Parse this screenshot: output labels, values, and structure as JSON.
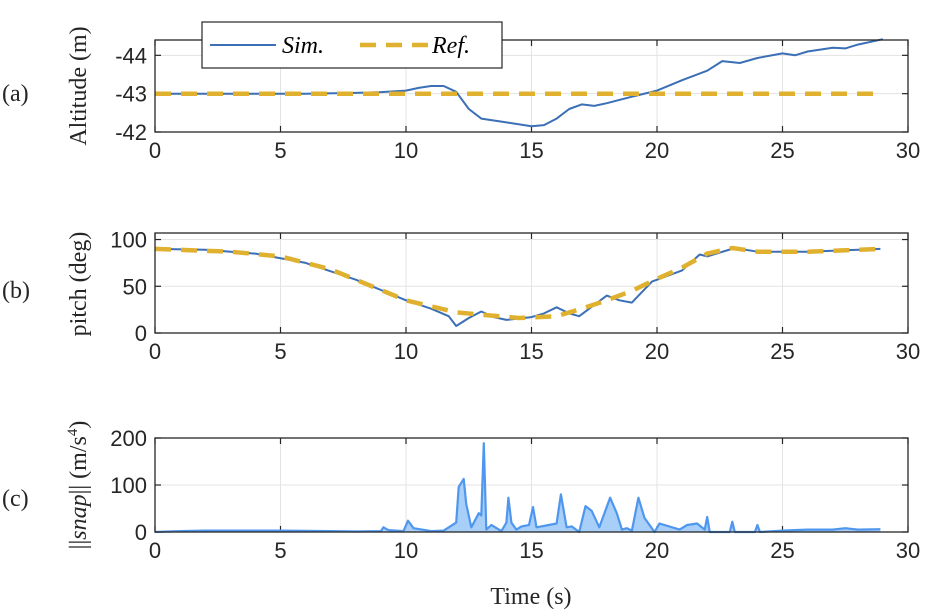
{
  "chart_data": [
    {
      "type": "line",
      "panel_label": "(a)",
      "ylabel": "Altitude (m)",
      "xlabel": "",
      "xlim": [
        0,
        30
      ],
      "ylim": [
        -44.4,
        -42
      ],
      "y_reversed": true,
      "xticks": [
        0,
        5,
        10,
        15,
        20,
        25,
        30
      ],
      "yticks": [
        -44,
        -43,
        -42
      ],
      "grid": true,
      "legend": {
        "placement": "top-left",
        "entries": [
          "Sim.",
          "Ref."
        ]
      },
      "series": [
        {
          "name": "Sim.",
          "color": "#3b6fb6",
          "style": "solid",
          "x": [
            0,
            2,
            4,
            6,
            8,
            9,
            10,
            10.5,
            11,
            11.5,
            12,
            12.5,
            13,
            14,
            15,
            15.5,
            16,
            16.5,
            17,
            17.5,
            18,
            19,
            20,
            21,
            22,
            22.6,
            23.3,
            24,
            25,
            25.5,
            26,
            27,
            27.5,
            28,
            29
          ],
          "y": [
            -43,
            -43,
            -43,
            -43,
            -43.02,
            -43.04,
            -43.08,
            -43.15,
            -43.2,
            -43.2,
            -43.05,
            -42.6,
            -42.35,
            -42.25,
            -42.15,
            -42.18,
            -42.35,
            -42.6,
            -42.72,
            -42.68,
            -42.75,
            -42.92,
            -43.08,
            -43.35,
            -43.6,
            -43.85,
            -43.8,
            -43.93,
            -44.05,
            -44.0,
            -44.1,
            -44.2,
            -44.18,
            -44.28,
            -44.42
          ]
        },
        {
          "name": "Ref.",
          "color": "#e0b12f",
          "style": "dashed",
          "x": [
            0,
            29
          ],
          "y": [
            -43,
            -43
          ]
        }
      ]
    },
    {
      "type": "line",
      "panel_label": "(b)",
      "ylabel": "pitch (deg)",
      "xlabel": "",
      "xlim": [
        0,
        30
      ],
      "ylim": [
        0,
        107
      ],
      "xticks": [
        0,
        5,
        10,
        15,
        20,
        25,
        30
      ],
      "yticks": [
        0,
        50,
        100
      ],
      "grid": true,
      "series": [
        {
          "name": "Sim.",
          "color": "#3b6fb6",
          "style": "solid",
          "x": [
            0,
            2,
            4,
            6,
            8,
            10,
            11,
            11.7,
            12,
            12.5,
            13,
            13.5,
            14,
            15,
            15.5,
            16,
            16.5,
            16.9,
            18,
            18.5,
            19,
            19.8,
            21,
            21.7,
            22,
            23.1,
            24,
            26,
            28.9
          ],
          "y": [
            90,
            89,
            85,
            75,
            57,
            35,
            26,
            18,
            7.5,
            16,
            23,
            17,
            14,
            17,
            21,
            27.5,
            21,
            18,
            40,
            35,
            32.5,
            55,
            67,
            84,
            82,
            91,
            87,
            87,
            90
          ]
        },
        {
          "name": "Ref.",
          "color": "#e0b12f",
          "style": "dashed",
          "x": [
            0,
            3,
            5,
            7,
            8,
            10,
            12,
            14.5,
            16,
            17,
            18,
            19,
            20,
            21,
            22,
            23,
            24,
            26,
            29
          ],
          "y": [
            90,
            87,
            82,
            68,
            57,
            35,
            22,
            16,
            18,
            26,
            35,
            45,
            58,
            70,
            85,
            91,
            87,
            87,
            90
          ]
        }
      ]
    },
    {
      "type": "area",
      "panel_label": "(c)",
      "ylabel": "||snap|| (m/s⁴)",
      "ylabel_parts": {
        "bars_open": "||",
        "var": "snap",
        "bars_close": "||",
        "unit": "(m/s",
        "sup": "4",
        "close": ")"
      },
      "xlabel": "Time (s)",
      "xlim": [
        0,
        30
      ],
      "ylim": [
        0,
        200
      ],
      "xticks": [
        0,
        5,
        10,
        15,
        20,
        25,
        30
      ],
      "yticks": [
        0,
        100,
        200
      ],
      "grid": true,
      "series": [
        {
          "name": "snap",
          "color": "#4f97ee",
          "fill": "#a8cff8",
          "x": [
            0,
            1,
            2,
            5,
            7,
            8,
            9,
            9.1,
            9.3,
            9.9,
            10.08,
            10.3,
            11,
            11.5,
            12.0,
            12.1,
            12.3,
            12.4,
            12.6,
            12.9,
            13.0,
            13.1,
            13.2,
            13.4,
            13.8,
            14.0,
            14.08,
            14.2,
            14.4,
            14.6,
            14.9,
            15.06,
            15.2,
            16.0,
            16.17,
            16.4,
            16.6,
            16.9,
            17.15,
            17.4,
            17.7,
            18.13,
            18.4,
            18.6,
            18.8,
            19.0,
            19.26,
            19.5,
            19.9,
            20.1,
            20.9,
            21.2,
            21.6,
            21.9,
            22.0,
            22.1,
            22.9,
            23.0,
            23.1,
            23.9,
            24.0,
            24.1,
            25,
            26,
            27,
            27.5,
            28,
            28.9
          ],
          "y": [
            0,
            2,
            3,
            3,
            2,
            1,
            2,
            10,
            4,
            2,
            24,
            8,
            2,
            3,
            20,
            96,
            113,
            60,
            10,
            40,
            35,
            189,
            5,
            15,
            2,
            20,
            73,
            20,
            5,
            12,
            15,
            53,
            10,
            18,
            80,
            10,
            12,
            0,
            55,
            45,
            10,
            73,
            40,
            5,
            8,
            3,
            73,
            30,
            0,
            18,
            5,
            15,
            18,
            5,
            32,
            0,
            0,
            22,
            0,
            0,
            15,
            0,
            3,
            5,
            5,
            8,
            5,
            6
          ]
        }
      ]
    }
  ]
}
